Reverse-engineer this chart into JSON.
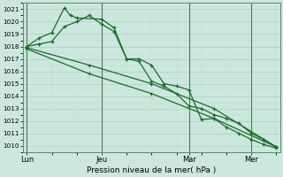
{
  "xlabel": "Pression niveau de la mer( hPa )",
  "bg_color": "#cce8de",
  "grid_major_color": "#aacfbe",
  "grid_minor_color": "#c0ddd0",
  "line_color": "#1a6b2a",
  "line_color2": "#2a7a3a",
  "ylim": [
    1009.5,
    1021.5
  ],
  "xlim": [
    -0.3,
    20.3
  ],
  "yticks": [
    1010,
    1011,
    1012,
    1013,
    1014,
    1015,
    1016,
    1017,
    1018,
    1019,
    1020,
    1021
  ],
  "day_labels": [
    "Lun",
    "Jeu",
    "Mar",
    "Mer"
  ],
  "day_positions": [
    0,
    6,
    13,
    18
  ],
  "vline_positions": [
    0,
    6,
    13,
    18
  ],
  "line1_x": [
    0,
    1,
    2,
    3,
    3.5,
    4,
    6,
    7,
    8,
    9,
    10,
    11,
    12,
    13,
    14,
    15,
    16,
    17,
    18,
    19,
    20
  ],
  "line1_y": [
    1018.0,
    1018.7,
    1019.1,
    1021.1,
    1020.5,
    1020.3,
    1020.2,
    1019.5,
    1017.0,
    1017.0,
    1016.5,
    1015.0,
    1014.8,
    1014.5,
    1012.1,
    1012.2,
    1011.5,
    1011.0,
    1010.5,
    1010.1,
    1009.8
  ],
  "line2_x": [
    0,
    1,
    2,
    3,
    4,
    5,
    6,
    7,
    8,
    9,
    10,
    11,
    12,
    13,
    14,
    15,
    16,
    17,
    18,
    19,
    20
  ],
  "line2_y": [
    1018.0,
    1018.2,
    1018.4,
    1019.6,
    1020.0,
    1020.5,
    1019.8,
    1019.2,
    1017.0,
    1016.8,
    1015.2,
    1014.8,
    1014.2,
    1013.2,
    1013.0,
    1012.5,
    1012.2,
    1011.8,
    1011.0,
    1010.5,
    1009.9
  ],
  "line3_x": [
    0,
    5,
    10,
    15,
    20
  ],
  "line3_y": [
    1017.9,
    1016.5,
    1015.0,
    1013.0,
    1009.9
  ],
  "line4_x": [
    0,
    5,
    10,
    15,
    20
  ],
  "line4_y": [
    1017.8,
    1015.8,
    1014.2,
    1012.2,
    1009.9
  ],
  "n_x_total": 20
}
